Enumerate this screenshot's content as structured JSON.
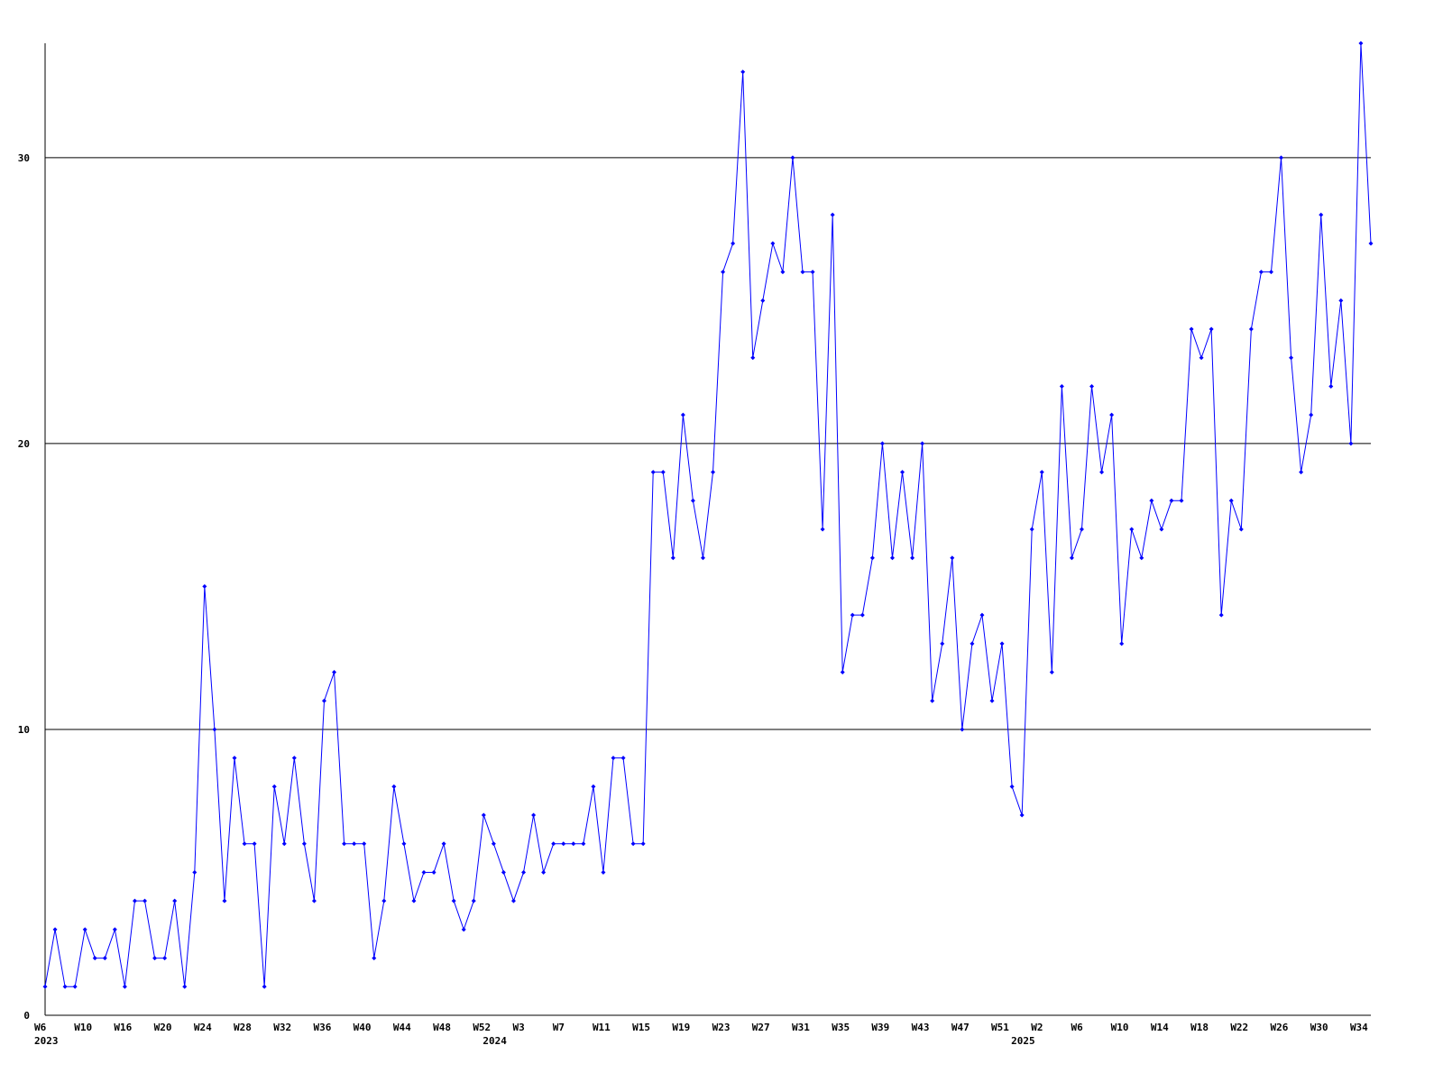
{
  "chart_data": {
    "type": "line",
    "categories": [
      "W6",
      null,
      null,
      null,
      "W10",
      null,
      null,
      null,
      "W16",
      null,
      null,
      null,
      "W20",
      null,
      null,
      null,
      "W24",
      null,
      null,
      null,
      "W28",
      null,
      null,
      null,
      "W32",
      null,
      null,
      null,
      "W36",
      null,
      null,
      null,
      "W40",
      null,
      null,
      null,
      "W44",
      null,
      null,
      null,
      "W48",
      null,
      null,
      null,
      "W52",
      null,
      null,
      null,
      "W3",
      null,
      null,
      null,
      "W7",
      null,
      null,
      null,
      "W11",
      null,
      null,
      null,
      "W15",
      null,
      null,
      null,
      "W19",
      null,
      null,
      null,
      "W23",
      null,
      null,
      null,
      "W27",
      null,
      null,
      null,
      "W31",
      null,
      null,
      null,
      "W35",
      null,
      null,
      null,
      "W39",
      null,
      null,
      null,
      "W43",
      null,
      null,
      null,
      "W47",
      null,
      null,
      null,
      "W51",
      null,
      null,
      null,
      "W2",
      null,
      null,
      null,
      "W6",
      null,
      null,
      null,
      "W10",
      null,
      null,
      null,
      "W14",
      null,
      null,
      null,
      "W18",
      null,
      null,
      null,
      "W22",
      null,
      null,
      null,
      "W26",
      null,
      null,
      null,
      "W30",
      null,
      null,
      null,
      "W34",
      null
    ],
    "year_labels": [
      "2023",
      null,
      null,
      null,
      null,
      null,
      null,
      null,
      null,
      null,
      null,
      null,
      null,
      null,
      null,
      null,
      null,
      null,
      null,
      null,
      null,
      null,
      null,
      null,
      null,
      null,
      null,
      null,
      null,
      null,
      null,
      null,
      null,
      null,
      null,
      null,
      null,
      null,
      null,
      null,
      null,
      null,
      null,
      null,
      null,
      "2024",
      null,
      null,
      null,
      null,
      null,
      null,
      null,
      null,
      null,
      null,
      null,
      null,
      null,
      null,
      null,
      null,
      null,
      null,
      null,
      null,
      null,
      null,
      null,
      null,
      null,
      null,
      null,
      null,
      null,
      null,
      null,
      null,
      null,
      null,
      null,
      null,
      null,
      null,
      null,
      null,
      null,
      null,
      null,
      null,
      null,
      null,
      null,
      null,
      null,
      null,
      null,
      null,
      "2025",
      null,
      null,
      null,
      null,
      null,
      null,
      null,
      null,
      null,
      null,
      null,
      null,
      null,
      null,
      null,
      null,
      null,
      null,
      null,
      null,
      null,
      null,
      null,
      null,
      null,
      null,
      null,
      null,
      null,
      null,
      null,
      null,
      null,
      null,
      null
    ],
    "series": [
      {
        "color": "#0000ff",
        "values": [
          1,
          3,
          1,
          1,
          3,
          2,
          2,
          3,
          1,
          4,
          4,
          2,
          2,
          4,
          1,
          5,
          15,
          10,
          4,
          9,
          6,
          6,
          1,
          8,
          6,
          9,
          6,
          4,
          11,
          12,
          6,
          6,
          6,
          2,
          4,
          8,
          6,
          4,
          5,
          5,
          6,
          4,
          3,
          4,
          7,
          6,
          5,
          4,
          5,
          7,
          5,
          6,
          6,
          6,
          6,
          8,
          5,
          9,
          9,
          6,
          6,
          19,
          19,
          16,
          21,
          18,
          16,
          19,
          26,
          27,
          33,
          23,
          25,
          27,
          26,
          30,
          26,
          26,
          17,
          28,
          12,
          14,
          14,
          16,
          20,
          16,
          19,
          16,
          20,
          11,
          13,
          16,
          10,
          13,
          14,
          11,
          13,
          8,
          7,
          17,
          19,
          12,
          22,
          16,
          17,
          22,
          19,
          21,
          13,
          17,
          16,
          18,
          17,
          18,
          18,
          24,
          23,
          24,
          14,
          18,
          17,
          24,
          26,
          26,
          30,
          23,
          19,
          21,
          28,
          22,
          25,
          20,
          34,
          27
        ]
      }
    ],
    "ylim": [
      0,
      34
    ],
    "yticks": [
      0,
      10,
      20,
      30
    ],
    "grid": true
  }
}
